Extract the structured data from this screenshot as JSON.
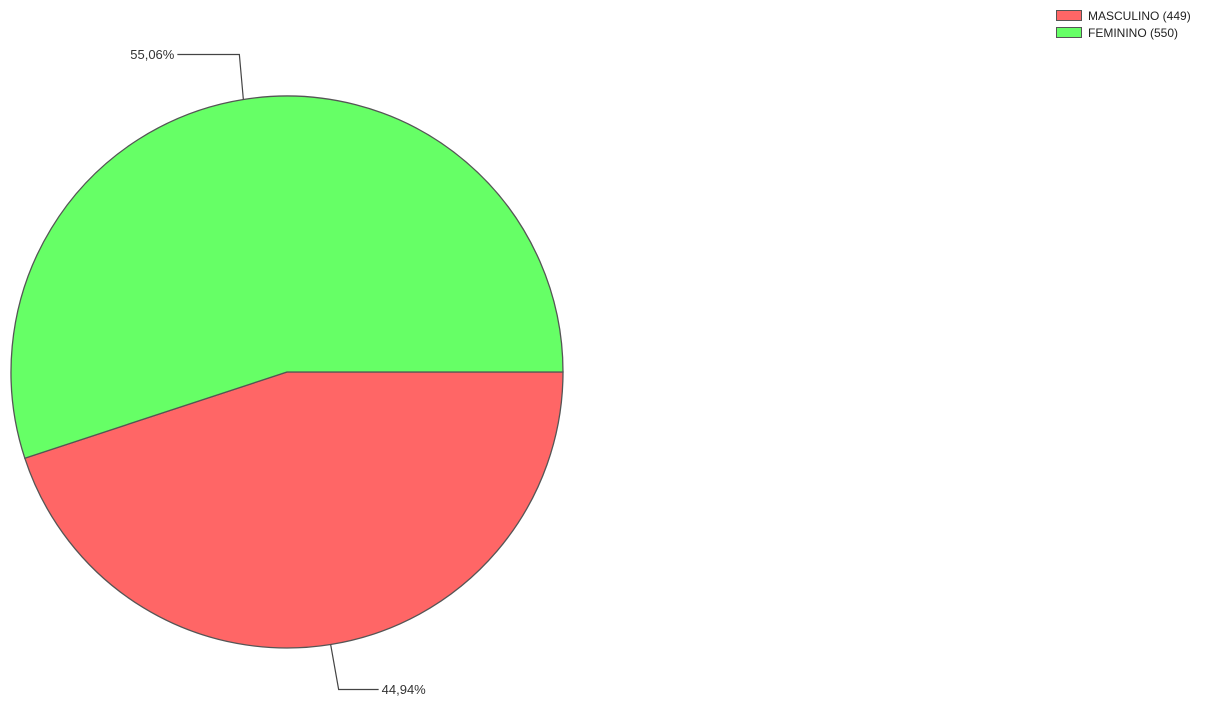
{
  "chart_data": {
    "type": "pie",
    "slices": [
      {
        "name": "MASCULINO",
        "value": 449,
        "percent_label": "44,94%",
        "color": "#ff6666"
      },
      {
        "name": "FEMININO",
        "value": 550,
        "percent_label": "55,06%",
        "color": "#66ff66"
      }
    ],
    "legend": {
      "position": "top-right",
      "entries": [
        "MASCULINO (449)",
        "FEMININO (550)"
      ]
    }
  }
}
